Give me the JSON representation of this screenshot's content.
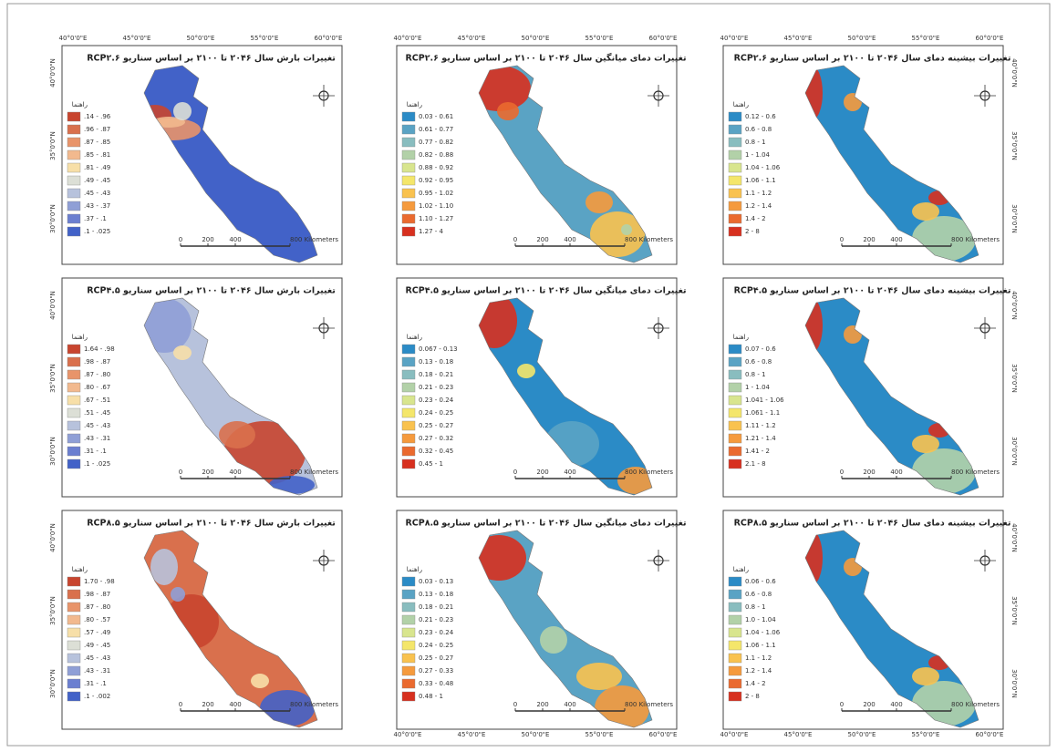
{
  "lon_labels": [
    "40°0'0\"E",
    "45°0'0\"E",
    "50°0'0\"E",
    "55°0'0\"E",
    "60°0'0\"E"
  ],
  "lat_labels": [
    "40°0'0\"N",
    "35°0'0\"N",
    "30°0'0\"N"
  ],
  "legend_title": "راهنما",
  "scale_labels": [
    "0",
    "200",
    "400",
    "800 Kilometers"
  ],
  "panels": [
    {
      "title": "تغییرات بارش سال ۲۰۴۶ تا ۲۱۰۰ بر اساس سناریو RCP۲.۶",
      "kind": "precip",
      "legend": [
        ".14 - .96",
        ".96 - .87",
        ".87 - .85",
        ".85 - .81",
        ".81 - .49",
        ".49 - .45",
        ".45 - .43",
        ".43 - .37",
        ".37 - .1",
        ".1 - .025"
      ],
      "colors": [
        "#c8452f",
        "#d9704d",
        "#e8946a",
        "#f2b98e",
        "#f7dfa8",
        "#dcdfd6",
        "#b7c2dc",
        "#8f9fd6",
        "#6b7fd0",
        "#4262c8"
      ]
    },
    {
      "title": "تغییرات دمای میانگین سال ۲۰۴۶ تا ۲۱۰۰ بر اساس سناریو RCP۲.۶",
      "kind": "temp",
      "legend": [
        "0.03 - 0.61",
        "0.61 - 0.77",
        "0.77 - 0.82",
        "0.82 - 0.88",
        "0.88 - 0.92",
        "0.92 - 0.95",
        "0.95 - 1.02",
        "1.02 - 1.10",
        "1.10 - 1.27",
        "1.27 - 4"
      ],
      "colors": [
        "#2b8bc6",
        "#5aa3c4",
        "#89bdbf",
        "#b2d1a8",
        "#d8e58e",
        "#f4e66a",
        "#f9c24f",
        "#f59a3d",
        "#ea6a2f",
        "#d7301f"
      ]
    },
    {
      "title": "تغییرات بیشینه دمای سال ۲۰۴۶ تا ۲۱۰۰ بر اساس سناریو RCP۲.۶",
      "kind": "tmax",
      "legend": [
        "0.12 - 0.6",
        "0.6 - 0.8",
        "0.8 - 1",
        "1 - 1.04",
        "1.04 - 1.06",
        "1.06 - 1.1",
        "1.1 - 1.2",
        "1.2 - 1.4",
        "1.4 - 2",
        "2 - 8"
      ],
      "colors": [
        "#2b8bc6",
        "#5aa3c4",
        "#89bdbf",
        "#b2d1a8",
        "#d8e58e",
        "#f4e66a",
        "#f9c24f",
        "#f59a3d",
        "#ea6a2f",
        "#d7301f"
      ]
    },
    {
      "title": "تغییرات بارش سال ۲۰۴۶ تا ۲۱۰۰ بر اساس سناریو RCP۴.۵",
      "kind": "precip2",
      "legend": [
        "1.64 - .98",
        ".98 - .87",
        ".87 - .80",
        ".80 - .67",
        ".67 - .51",
        ".51 - .45",
        ".45 - .43",
        ".43 - .31",
        ".31 - .1",
        ".1 - .025"
      ],
      "colors": [
        "#c8452f",
        "#d9704d",
        "#e8946a",
        "#f2b98e",
        "#f7dfa8",
        "#dcdfd6",
        "#b7c2dc",
        "#8f9fd6",
        "#6b7fd0",
        "#4262c8"
      ]
    },
    {
      "title": "تغییرات دمای میانگین سال ۲۰۴۶ تا ۲۱۰۰ بر اساس سناریو RCP۴.۵",
      "kind": "temp2",
      "legend": [
        "0.067 - 0.13",
        "0.13 - 0.18",
        "0.18 - 0.21",
        "0.21 - 0.23",
        "0.23 - 0.24",
        "0.24 - 0.25",
        "0.25 - 0.27",
        "0.27 - 0.32",
        "0.32 - 0.45",
        "0.45 - 1"
      ],
      "colors": [
        "#2b8bc6",
        "#5aa3c4",
        "#89bdbf",
        "#b2d1a8",
        "#d8e58e",
        "#f4e66a",
        "#f9c24f",
        "#f59a3d",
        "#ea6a2f",
        "#d7301f"
      ]
    },
    {
      "title": "تغییرات بیشینه دمای سال ۲۰۴۶ تا ۲۱۰۰ بر اساس سناریو RCP۴.۵",
      "kind": "tmax",
      "legend": [
        "0.07 - 0.6",
        "0.6 - 0.8",
        "0.8 - 1",
        "1 - 1.04",
        "1.041 - 1.06",
        "1.061 - 1.1",
        "1.11 - 1.2",
        "1.21 - 1.4",
        "1.41 - 2",
        "2.1 - 8"
      ],
      "colors": [
        "#2b8bc6",
        "#5aa3c4",
        "#89bdbf",
        "#b2d1a8",
        "#d8e58e",
        "#f4e66a",
        "#f9c24f",
        "#f59a3d",
        "#ea6a2f",
        "#d7301f"
      ]
    },
    {
      "title": "تغییرات بارش سال ۲۰۴۶ تا ۲۱۰۰ بر اساس سناریو RCP۸.۵",
      "kind": "precip3",
      "legend": [
        "1.70 - .98",
        ".98 - .87",
        ".87 - .80",
        ".80 - .57",
        ".57 - .49",
        ".49 - .45",
        ".45 - .43",
        ".43 - .31",
        ".31 - .1",
        ".1 - .002"
      ],
      "colors": [
        "#c8452f",
        "#d9704d",
        "#e8946a",
        "#f2b98e",
        "#f7dfa8",
        "#dcdfd6",
        "#b7c2dc",
        "#8f9fd6",
        "#6b7fd0",
        "#4262c8"
      ]
    },
    {
      "title": "تغییرات دمای میانگین سال ۲۰۴۶ تا ۲۱۰۰ بر اساس سناریو RCP۸.۵",
      "kind": "temp3",
      "legend": [
        "0.03 - 0.13",
        "0.13 - 0.18",
        "0.18 - 0.21",
        "0.21 - 0.23",
        "0.23 - 0.24",
        "0.24 - 0.25",
        "0.25 - 0.27",
        "0.27 - 0.33",
        "0.33 - 0.48",
        "0.48 - 1"
      ],
      "colors": [
        "#2b8bc6",
        "#5aa3c4",
        "#89bdbf",
        "#b2d1a8",
        "#d8e58e",
        "#f4e66a",
        "#f9c24f",
        "#f59a3d",
        "#ea6a2f",
        "#d7301f"
      ]
    },
    {
      "title": "تغییرات بیشینه دمای سال ۲۰۴۶ تا ۲۱۰۰ بر اساس سناریو RCP۸.۵",
      "kind": "tmax",
      "legend": [
        "0.06 - 0.6",
        "0.6 - 0.8",
        "0.8 - 1",
        "1.0 - 1.04",
        "1.04 - 1.06",
        "1.06 - 1.1",
        "1.1 - 1.2",
        "1.2 - 1.4",
        "1.4 - 2",
        "2 - 8"
      ],
      "colors": [
        "#2b8bc6",
        "#5aa3c4",
        "#89bdbf",
        "#b2d1a8",
        "#d8e58e",
        "#f4e66a",
        "#f9c24f",
        "#f59a3d",
        "#ea6a2f",
        "#d7301f"
      ]
    }
  ]
}
